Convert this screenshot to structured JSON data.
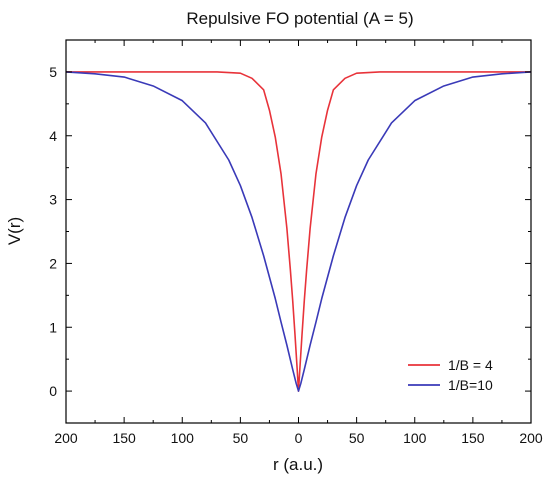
{
  "chart_data": {
    "type": "line",
    "title": "Repulsive FO potential (A = 5)",
    "xlabel": "r (a.u.)",
    "ylabel": "V(r)",
    "xlim": [
      -200,
      200
    ],
    "ylim": [
      -0.5,
      5.5
    ],
    "x_ticks": [
      -200,
      -150,
      -100,
      -50,
      0,
      50,
      100,
      150,
      200
    ],
    "x_tick_labels": [
      "200",
      "150",
      "100",
      "50",
      "0",
      "50",
      "100",
      "150",
      "200"
    ],
    "y_ticks": [
      0,
      1,
      2,
      3,
      4,
      5
    ],
    "y_tick_labels": [
      "0",
      "1",
      "2",
      "3",
      "4",
      "5"
    ],
    "grid": false,
    "legend_position": "bottom-right",
    "series": [
      {
        "name": "1/B = 4",
        "color": "#e8333a",
        "x": [
          -200,
          -150,
          -100,
          -70,
          -50,
          -40,
          -30,
          -25,
          -20,
          -15,
          -10,
          -7,
          -5,
          -3,
          -1,
          0,
          1,
          3,
          5,
          7,
          10,
          15,
          20,
          25,
          30,
          40,
          50,
          70,
          100,
          150,
          200
        ],
        "y": [
          5.0,
          5.0,
          5.0,
          5.0,
          4.98,
          4.9,
          4.72,
          4.4,
          3.98,
          3.4,
          2.55,
          1.9,
          1.42,
          0.88,
          0.3,
          0.0,
          0.3,
          0.88,
          1.42,
          1.9,
          2.55,
          3.4,
          3.98,
          4.4,
          4.72,
          4.9,
          4.98,
          5.0,
          5.0,
          5.0,
          5.0
        ]
      },
      {
        "name": "1/B=10",
        "color": "#3a3ab8",
        "x": [
          -200,
          -175,
          -150,
          -125,
          -100,
          -80,
          -60,
          -50,
          -40,
          -30,
          -20,
          -15,
          -10,
          -5,
          -2,
          0,
          2,
          5,
          10,
          15,
          20,
          30,
          40,
          50,
          60,
          80,
          100,
          125,
          150,
          175,
          200
        ],
        "y": [
          5.0,
          4.97,
          4.92,
          4.78,
          4.55,
          4.2,
          3.62,
          3.22,
          2.72,
          2.12,
          1.45,
          1.08,
          0.72,
          0.34,
          0.12,
          0.0,
          0.12,
          0.34,
          0.72,
          1.08,
          1.45,
          2.12,
          2.72,
          3.22,
          3.62,
          4.2,
          4.55,
          4.78,
          4.92,
          4.97,
          5.0
        ]
      }
    ]
  }
}
